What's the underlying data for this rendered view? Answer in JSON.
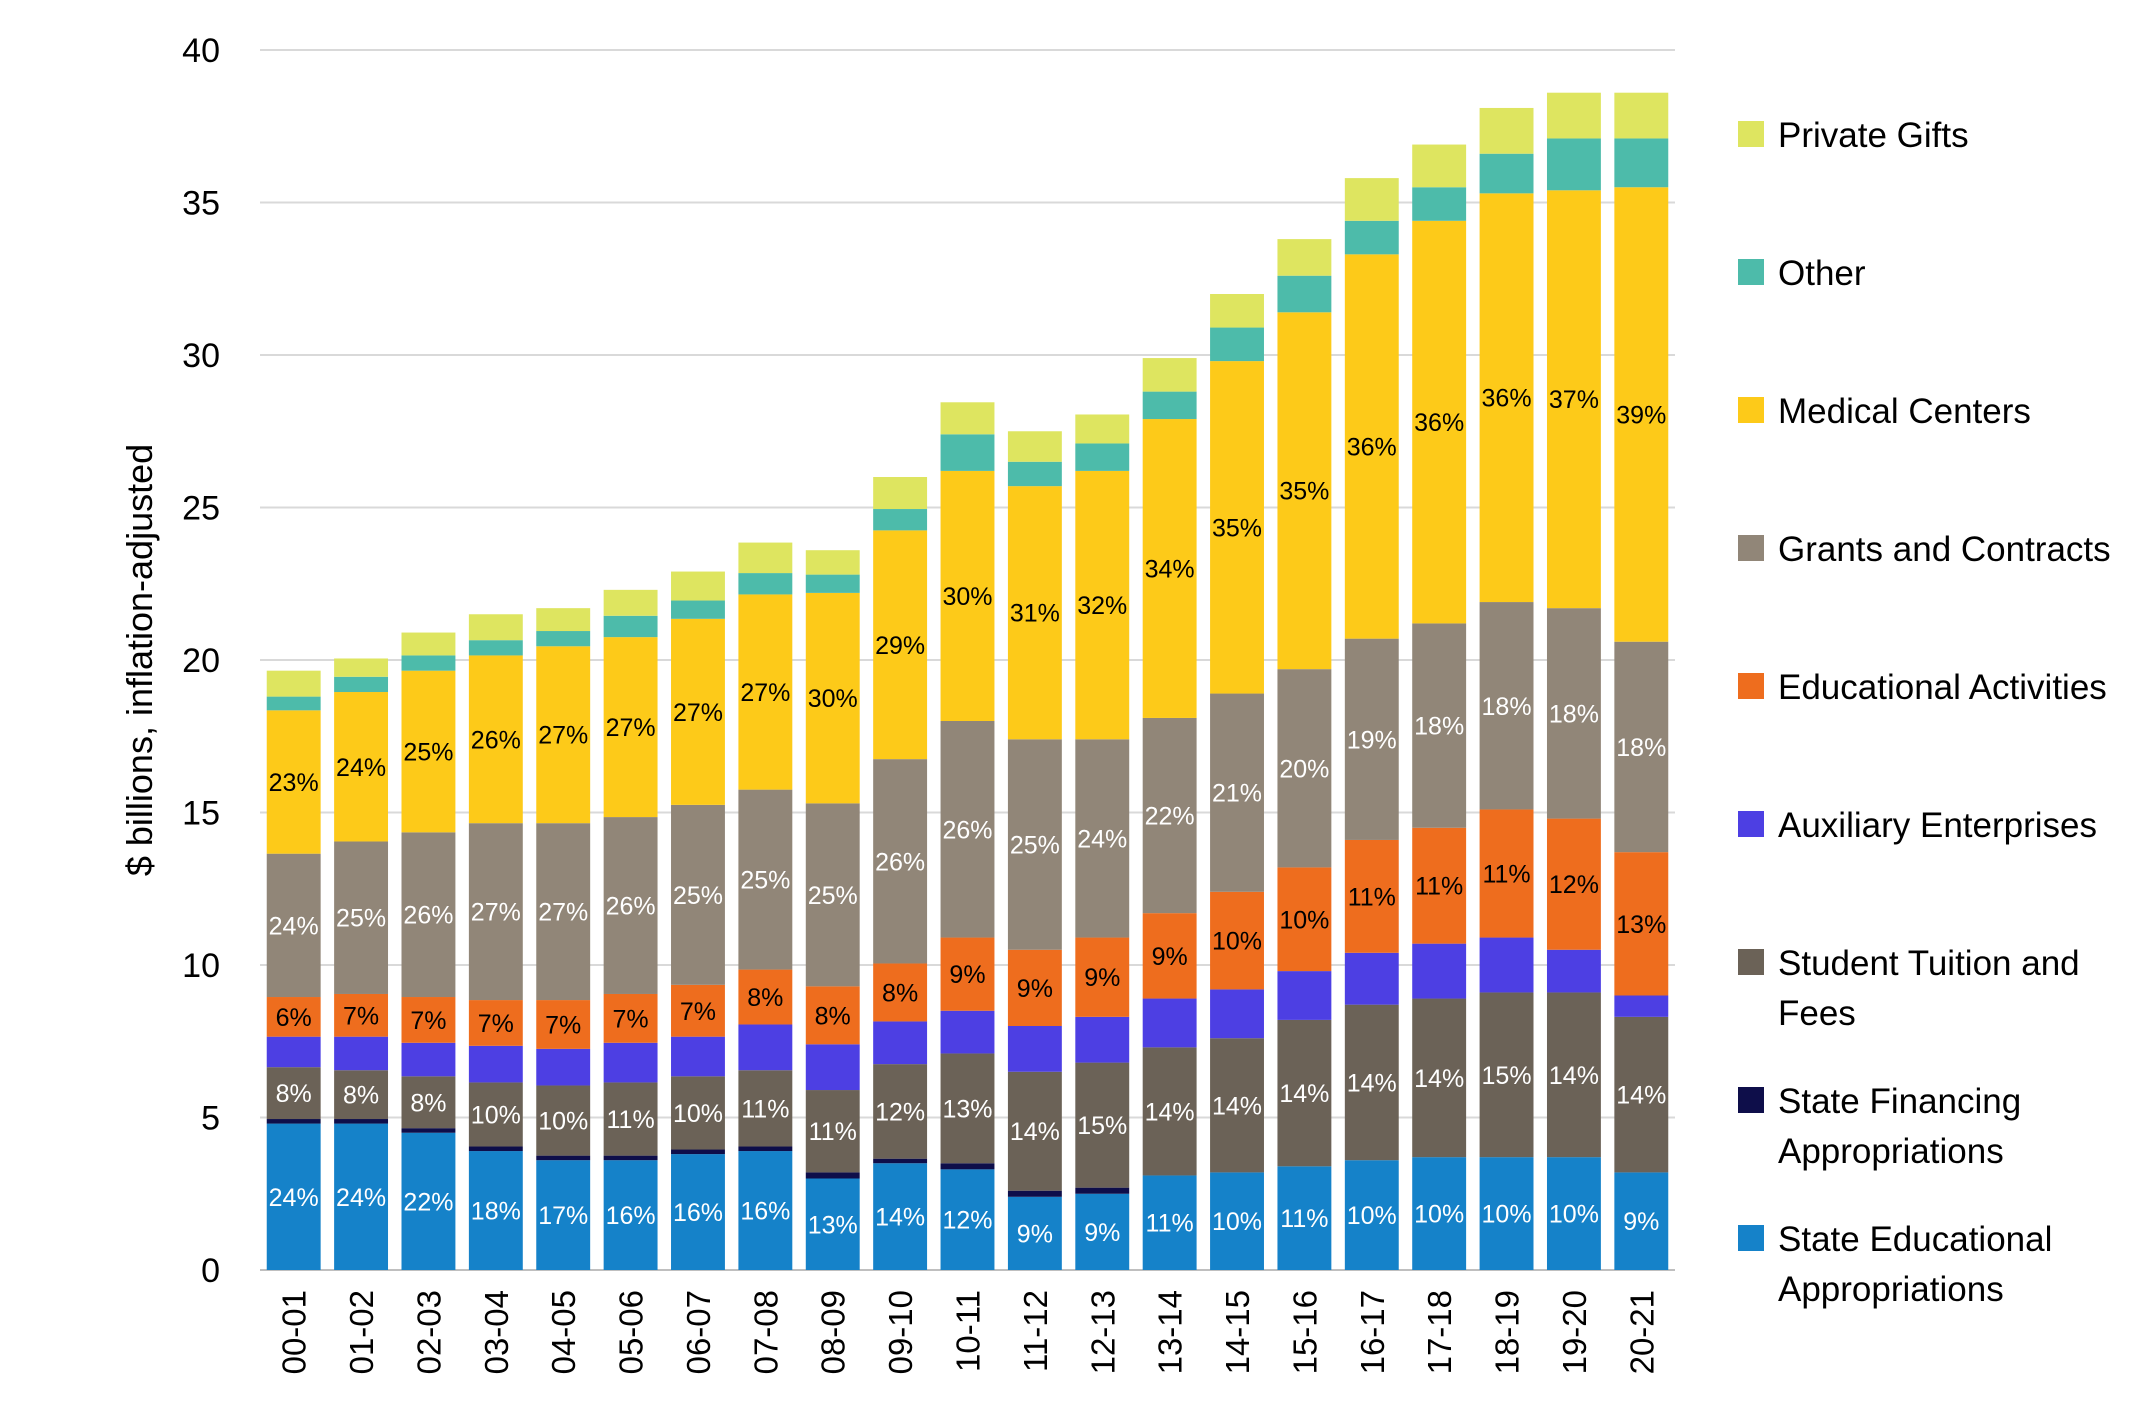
{
  "chart_data": {
    "type": "bar",
    "stacked": true,
    "title": "",
    "xlabel": "",
    "ylabel": "$ billions, inflation-adjusted",
    "ylim": [
      0,
      40
    ],
    "yticks": [
      0,
      5,
      10,
      15,
      20,
      25,
      30,
      35,
      40
    ],
    "grid": true,
    "legend_position": "right",
    "categories": [
      "00-01",
      "01-02",
      "02-03",
      "03-04",
      "04-05",
      "05-06",
      "06-07",
      "07-08",
      "08-09",
      "09-10",
      "10-11",
      "11-12",
      "12-13",
      "13-14",
      "14-15",
      "15-16",
      "16-17",
      "17-18",
      "18-19",
      "19-20",
      "20-21"
    ],
    "series": [
      {
        "name": "State Educational Appropriations",
        "color": "#1582C9",
        "label_color": "#ffffff",
        "values": [
          4.8,
          4.8,
          4.5,
          3.9,
          3.6,
          3.6,
          3.8,
          3.9,
          3.0,
          3.5,
          3.3,
          2.4,
          2.5,
          3.1,
          3.2,
          3.4,
          3.6,
          3.7,
          3.7,
          3.7,
          3.2
        ],
        "labels": [
          "24%",
          "24%",
          "22%",
          "18%",
          "17%",
          "16%",
          "16%",
          "16%",
          "13%",
          "14%",
          "12%",
          "9%",
          "9%",
          "11%",
          "10%",
          "11%",
          "10%",
          "10%",
          "10%",
          "10%",
          "9%"
        ]
      },
      {
        "name": "State Financing Appropriations",
        "color": "#0E0E4A",
        "label_color": "#ffffff",
        "values": [
          0.15,
          0.15,
          0.15,
          0.15,
          0.15,
          0.15,
          0.15,
          0.15,
          0.2,
          0.15,
          0.2,
          0.2,
          0.2,
          0.0,
          0.0,
          0.0,
          0.0,
          0.0,
          0.0,
          0.0,
          0.0
        ],
        "labels": [
          "",
          "",
          "",
          "",
          "",
          "",
          "",
          "",
          "",
          "",
          "",
          "",
          "",
          "",
          "",
          "",
          "",
          "",
          "",
          "",
          ""
        ]
      },
      {
        "name": "Student Tuition and Fees",
        "color": "#6B6257",
        "label_color": "#ffffff",
        "values": [
          1.7,
          1.6,
          1.7,
          2.1,
          2.3,
          2.4,
          2.4,
          2.5,
          2.7,
          3.1,
          3.6,
          3.9,
          4.1,
          4.2,
          4.4,
          4.8,
          5.1,
          5.2,
          5.4,
          5.4,
          5.1
        ],
        "labels": [
          "8%",
          "8%",
          "8%",
          "10%",
          "10%",
          "11%",
          "10%",
          "11%",
          "11%",
          "12%",
          "13%",
          "14%",
          "15%",
          "14%",
          "14%",
          "14%",
          "14%",
          "14%",
          "15%",
          "14%",
          "14%"
        ]
      },
      {
        "name": "Auxiliary Enterprises",
        "color": "#4D3FE3",
        "label_color": "#ffffff",
        "values": [
          1.0,
          1.1,
          1.1,
          1.2,
          1.2,
          1.3,
          1.3,
          1.5,
          1.5,
          1.4,
          1.4,
          1.5,
          1.5,
          1.6,
          1.6,
          1.6,
          1.7,
          1.8,
          1.8,
          1.4,
          0.7
        ],
        "labels": [
          "",
          "",
          "",
          "",
          "",
          "",
          "",
          "",
          "",
          "",
          "",
          "",
          "",
          "",
          "",
          "",
          "",
          "",
          "",
          "",
          ""
        ]
      },
      {
        "name": "Educational Activities",
        "color": "#EE6D1E",
        "label_color": "#000000",
        "values": [
          1.3,
          1.4,
          1.5,
          1.5,
          1.6,
          1.6,
          1.7,
          1.8,
          1.9,
          1.9,
          2.4,
          2.5,
          2.6,
          2.8,
          3.2,
          3.4,
          3.7,
          3.8,
          4.2,
          4.3,
          4.7
        ],
        "labels": [
          "6%",
          "7%",
          "7%",
          "7%",
          "7%",
          "7%",
          "7%",
          "8%",
          "8%",
          "8%",
          "9%",
          "9%",
          "9%",
          "9%",
          "10%",
          "10%",
          "11%",
          "11%",
          "11%",
          "12%",
          "13%"
        ]
      },
      {
        "name": "Grants and Contracts",
        "color": "#918678",
        "label_color": "#ffffff",
        "values": [
          4.7,
          5.0,
          5.4,
          5.8,
          5.8,
          5.8,
          5.9,
          5.9,
          6.0,
          6.7,
          7.1,
          6.9,
          6.5,
          6.4,
          6.5,
          6.5,
          6.6,
          6.7,
          6.8,
          6.9,
          6.9
        ],
        "labels": [
          "24%",
          "25%",
          "26%",
          "27%",
          "27%",
          "26%",
          "25%",
          "25%",
          "25%",
          "26%",
          "26%",
          "25%",
          "24%",
          "22%",
          "21%",
          "20%",
          "19%",
          "18%",
          "18%",
          "18%",
          "18%"
        ]
      },
      {
        "name": "Medical Centers",
        "color": "#FDCA19",
        "label_color": "#000000",
        "values": [
          4.7,
          4.9,
          5.3,
          5.5,
          5.8,
          5.9,
          6.1,
          6.4,
          6.9,
          7.5,
          8.2,
          8.3,
          8.8,
          9.8,
          10.9,
          11.7,
          12.6,
          13.2,
          13.4,
          13.7,
          14.9
        ],
        "labels": [
          "23%",
          "24%",
          "25%",
          "26%",
          "27%",
          "27%",
          "27%",
          "27%",
          "30%",
          "29%",
          "30%",
          "31%",
          "32%",
          "34%",
          "35%",
          "35%",
          "36%",
          "36%",
          "36%",
          "37%",
          "39%"
        ]
      },
      {
        "name": "Other",
        "color": "#4DBBAA",
        "label_color": "#000000",
        "values": [
          0.45,
          0.5,
          0.5,
          0.5,
          0.5,
          0.7,
          0.6,
          0.7,
          0.6,
          0.7,
          1.2,
          0.8,
          0.9,
          0.9,
          1.1,
          1.2,
          1.1,
          1.1,
          1.3,
          1.7,
          1.6
        ],
        "labels": [
          "",
          "",
          "",
          "",
          "",
          "",
          "",
          "",
          "",
          "",
          "",
          "",
          "",
          "",
          "",
          "",
          "",
          "",
          "",
          "",
          ""
        ]
      },
      {
        "name": "Private Gifts",
        "color": "#DEE560",
        "label_color": "#000000",
        "values": [
          0.85,
          0.6,
          0.75,
          0.85,
          0.75,
          0.85,
          0.95,
          1.0,
          0.8,
          1.05,
          1.05,
          1.0,
          0.95,
          1.1,
          1.1,
          1.2,
          1.4,
          1.4,
          1.5,
          1.5,
          1.5
        ],
        "labels": [
          "",
          "",
          "",
          "",
          "",
          "",
          "",
          "",
          "",
          "",
          "",
          "",
          "",
          "",
          "",
          "",
          "",
          "",
          "",
          "",
          ""
        ]
      }
    ],
    "legend": [
      {
        "lines": [
          "Private Gifts"
        ],
        "color": "#DEE560"
      },
      {
        "lines": [
          "Other"
        ],
        "color": "#4DBBAA"
      },
      {
        "lines": [
          "Medical Centers"
        ],
        "color": "#FDCA19"
      },
      {
        "lines": [
          "Grants and Contracts"
        ],
        "color": "#918678"
      },
      {
        "lines": [
          "Educational Activities"
        ],
        "color": "#EE6D1E"
      },
      {
        "lines": [
          "Auxiliary Enterprises"
        ],
        "color": "#4D3FE3"
      },
      {
        "lines": [
          "Student Tuition and",
          "Fees"
        ],
        "color": "#6B6257"
      },
      {
        "lines": [
          "State Financing",
          "Appropriations"
        ],
        "color": "#0E0E4A"
      },
      {
        "lines": [
          "State Educational",
          "Appropriations"
        ],
        "color": "#1582C9"
      }
    ]
  }
}
